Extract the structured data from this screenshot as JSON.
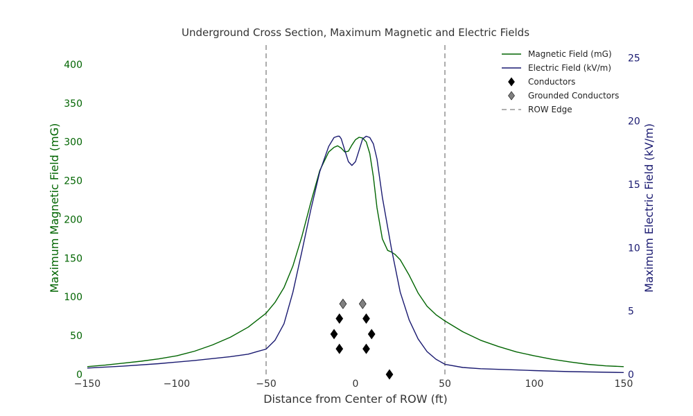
{
  "chart_data": {
    "type": "line",
    "title": "Underground Cross Section, Maximum Magnetic and Electric Fields",
    "xlabel": "Distance from Center of ROW (ft)",
    "ylabel_left": "Maximum Magnetic Field (mG)",
    "ylabel_right": "Maximum Electric Field (kV/m)",
    "xlim": [
      -150,
      150
    ],
    "ylim_left": [
      0,
      425
    ],
    "ylim_right": [
      0,
      26
    ],
    "x_ticks": [
      -150,
      -100,
      -50,
      0,
      50,
      100,
      150
    ],
    "x_tick_labels": [
      "−150",
      "−100",
      "−50",
      "0",
      "50",
      "100",
      "150"
    ],
    "y_left_ticks": [
      0,
      50,
      100,
      150,
      200,
      250,
      300,
      350,
      400
    ],
    "y_left_tick_labels": [
      "0",
      "50",
      "100",
      "150",
      "200",
      "250",
      "300",
      "350",
      "400"
    ],
    "y_right_ticks": [
      0,
      5,
      10,
      15,
      20,
      25
    ],
    "y_right_tick_labels": [
      "0",
      "5",
      "10",
      "15",
      "20",
      "25"
    ],
    "grid": false,
    "legend_position": "top-right",
    "colors": {
      "magnetic": "#006400",
      "electric": "#191970",
      "row_edge": "#808080",
      "conductor": "#000000",
      "grounded": "#808080",
      "title": "#333333"
    },
    "series": [
      {
        "name": "Magnetic Field (mG)",
        "axis": "left",
        "color": "#006400",
        "x": [
          -150,
          -140,
          -130,
          -120,
          -110,
          -100,
          -90,
          -80,
          -70,
          -60,
          -50,
          -45,
          -40,
          -35,
          -30,
          -25,
          -20,
          -15,
          -12,
          -10,
          -8,
          -6,
          -4,
          -2,
          0,
          2,
          4,
          6,
          8,
          10,
          12,
          15,
          18,
          20,
          22,
          25,
          30,
          35,
          40,
          45,
          50,
          60,
          70,
          80,
          90,
          100,
          110,
          120,
          130,
          140,
          150
        ],
        "y": [
          10,
          12,
          14.5,
          17,
          20,
          24,
          30,
          38,
          48,
          61,
          79,
          93,
          112,
          140,
          178,
          222,
          263,
          287,
          293,
          295,
          292,
          287,
          288,
          296,
          303,
          306,
          305,
          300,
          285,
          255,
          215,
          175,
          160,
          158,
          155,
          148,
          128,
          105,
          88,
          77,
          69,
          55,
          44,
          36,
          29,
          24,
          19.5,
          16,
          13,
          11,
          10
        ]
      },
      {
        "name": "Electric Field (kV/m)",
        "axis": "right",
        "color": "#191970",
        "x": [
          -150,
          -130,
          -110,
          -90,
          -70,
          -60,
          -55,
          -50,
          -45,
          -40,
          -35,
          -30,
          -25,
          -20,
          -15,
          -12,
          -10,
          -9,
          -8,
          -6,
          -4,
          -2,
          0,
          2,
          4,
          6,
          8,
          10,
          12,
          15,
          20,
          25,
          30,
          35,
          40,
          45,
          50,
          60,
          70,
          80,
          90,
          100,
          120,
          150
        ],
        "y": [
          0.5,
          0.65,
          0.85,
          1.1,
          1.4,
          1.6,
          1.8,
          2.0,
          2.7,
          4.0,
          6.5,
          9.7,
          13.0,
          16.0,
          18.0,
          18.7,
          18.8,
          18.8,
          18.6,
          17.7,
          16.8,
          16.5,
          16.8,
          17.7,
          18.6,
          18.8,
          18.7,
          18.2,
          17.0,
          14.0,
          10.0,
          6.5,
          4.3,
          2.8,
          1.8,
          1.2,
          0.8,
          0.55,
          0.45,
          0.4,
          0.35,
          0.3,
          0.22,
          0.15
        ]
      }
    ],
    "row_edges": [
      -50,
      50
    ],
    "conductors": [
      {
        "x": -9,
        "y": 72
      },
      {
        "x": 6,
        "y": 72
      },
      {
        "x": -12,
        "y": 52
      },
      {
        "x": 9,
        "y": 52
      },
      {
        "x": -9,
        "y": 33
      },
      {
        "x": 6,
        "y": 33
      },
      {
        "x": 19,
        "y": 0
      }
    ],
    "grounded_conductors": [
      {
        "x": -7,
        "y": 91
      },
      {
        "x": 4,
        "y": 91
      }
    ],
    "legend": [
      {
        "label": "Magnetic Field (mG)",
        "style": "line",
        "color": "#006400"
      },
      {
        "label": "Electric Field (kV/m)",
        "style": "line",
        "color": "#191970"
      },
      {
        "label": "Conductors",
        "style": "diamond",
        "color": "#000000"
      },
      {
        "label": "Grounded Conductors",
        "style": "diamond",
        "color": "#808080"
      },
      {
        "label": "ROW Edge",
        "style": "dashed",
        "color": "#808080"
      }
    ]
  }
}
